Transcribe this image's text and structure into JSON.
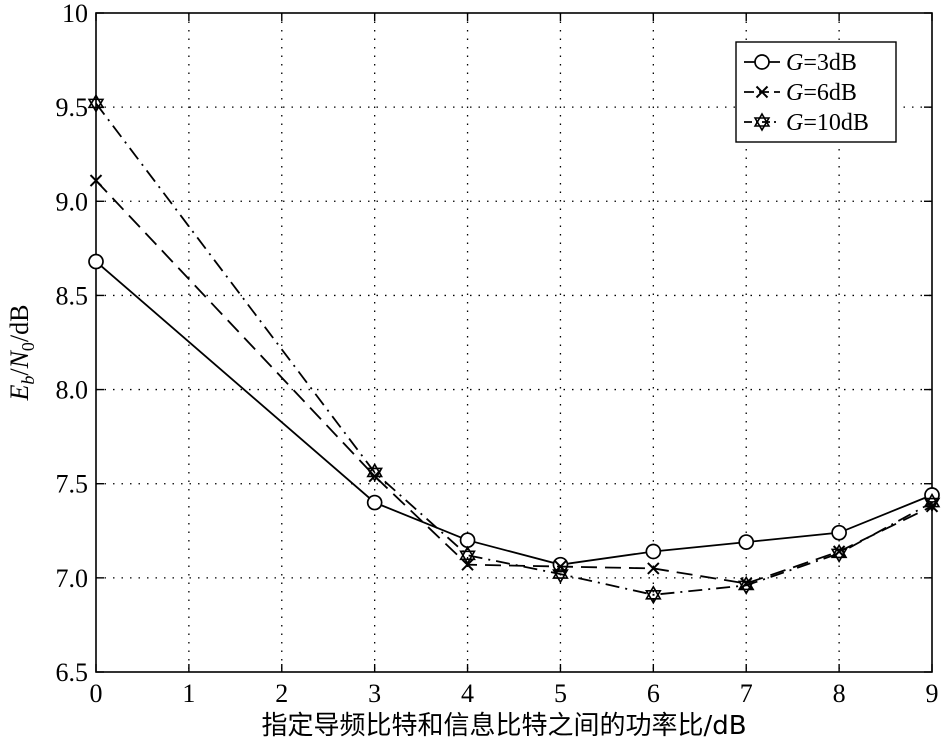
{
  "chart_data": {
    "type": "line",
    "xlabel": "指定导频比特和信息比特之间的功率比/dB",
    "ylabel_parts": {
      "E": "E",
      "b": "b",
      "slash": "/",
      "N": "N",
      "zero": "0",
      "unit": "/dB"
    },
    "xlim": [
      0,
      9
    ],
    "ylim": [
      6.5,
      10
    ],
    "x_ticks": [
      "0",
      "1",
      "2",
      "3",
      "4",
      "5",
      "6",
      "7",
      "8",
      "9"
    ],
    "y_ticks": [
      "6.5",
      "7.0",
      "7.5",
      "8.0",
      "8.5",
      "9.0",
      "9.5",
      "10"
    ],
    "grid": true,
    "legend_position": "top-right",
    "series": [
      {
        "name_prefix": "G",
        "name_suffix": "=3dB",
        "marker": "circle",
        "dash": "solid",
        "x": [
          0,
          3,
          4,
          5,
          6,
          7,
          8,
          9
        ],
        "y": [
          8.68,
          7.4,
          7.2,
          7.07,
          7.14,
          7.19,
          7.24,
          7.44
        ]
      },
      {
        "name_prefix": "G",
        "name_suffix": "=6dB",
        "marker": "x",
        "dash": "dashed",
        "x": [
          0,
          3,
          4,
          5,
          6,
          7,
          8,
          9
        ],
        "y": [
          9.11,
          7.54,
          7.07,
          7.06,
          7.05,
          6.97,
          7.14,
          7.38
        ]
      },
      {
        "name_prefix": "G",
        "name_suffix": "=10dB",
        "marker": "star",
        "dash": "dash-dot",
        "x": [
          0,
          3,
          4,
          5,
          6,
          7,
          8,
          9
        ],
        "y": [
          9.52,
          7.56,
          7.12,
          7.02,
          6.91,
          6.96,
          7.13,
          7.4
        ]
      }
    ]
  }
}
